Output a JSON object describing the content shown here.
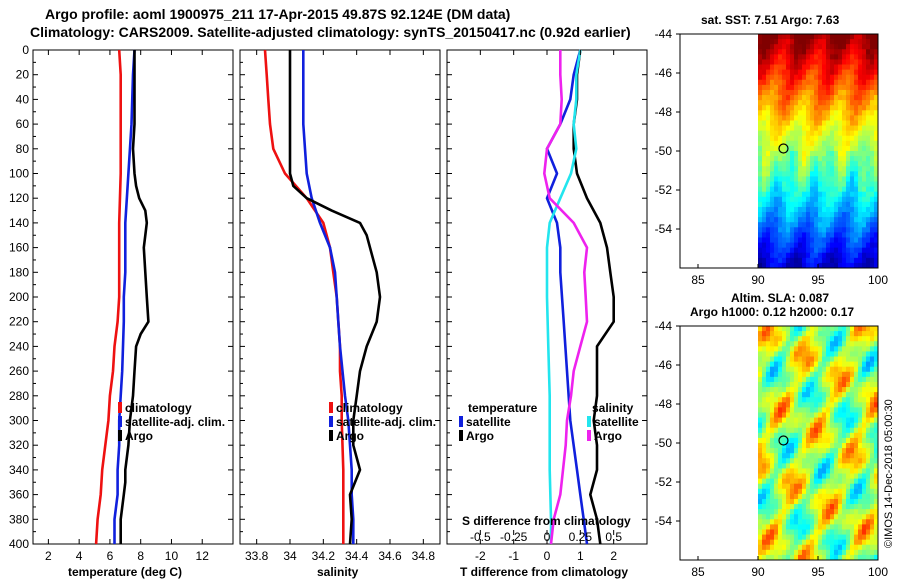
{
  "title": {
    "line1": "Argo profile: aoml 1900975_211 17-Apr-2015 49.87S 92.124E (DM data)",
    "line2": "Climatology: CARS2009. Satellite-adjusted climatology: synTS_20150417.nc (0.92d earlier)"
  },
  "colors": {
    "climatology": "#ee1111",
    "satellite": "#1020dd",
    "argo": "#000000",
    "salinity_diff": "#ee22ee",
    "salinity_sat": "#22e5ee"
  },
  "chart_data": [
    {
      "type": "line",
      "id": "temperature",
      "xlabel": "temperature (deg C)",
      "ylabel": "depth",
      "xlim": [
        1,
        14
      ],
      "ylim": [
        400,
        0
      ],
      "x_ticks": [
        2,
        4,
        6,
        8,
        10,
        12
      ],
      "y_ticks": [
        0,
        20,
        40,
        60,
        80,
        100,
        120,
        140,
        160,
        180,
        200,
        220,
        240,
        260,
        280,
        300,
        320,
        340,
        360,
        380,
        400
      ],
      "legend": [
        "climatology",
        "satellite-adj. clim.",
        "Argo"
      ],
      "series": [
        {
          "name": "climatology",
          "color_key": "climatology",
          "depth": [
            0,
            20,
            60,
            100,
            140,
            180,
            200,
            220,
            240,
            260,
            280,
            300,
            320,
            340,
            360,
            380,
            400
          ],
          "values": [
            6.6,
            6.7,
            6.7,
            6.7,
            6.6,
            6.6,
            6.6,
            6.5,
            6.3,
            6.2,
            6.0,
            5.9,
            5.7,
            5.5,
            5.4,
            5.2,
            5.1
          ]
        },
        {
          "name": "satellite-adj. clim.",
          "color_key": "satellite",
          "depth": [
            0,
            20,
            60,
            100,
            140,
            180,
            200,
            220,
            260,
            280,
            300,
            320,
            340,
            360,
            380,
            400
          ],
          "values": [
            7.6,
            7.5,
            7.4,
            7.2,
            7.0,
            7.0,
            6.9,
            6.9,
            6.8,
            6.7,
            6.6,
            6.6,
            6.5,
            6.5,
            6.3,
            6.3
          ]
        },
        {
          "name": "Argo",
          "color_key": "argo",
          "depth": [
            0,
            40,
            60,
            80,
            100,
            110,
            120,
            130,
            140,
            150,
            160,
            180,
            200,
            220,
            230,
            240,
            260,
            280,
            300,
            320,
            340,
            350,
            360,
            380,
            400
          ],
          "values": [
            7.6,
            7.6,
            7.6,
            7.5,
            7.6,
            7.7,
            7.9,
            8.3,
            8.4,
            8.3,
            8.2,
            8.3,
            8.4,
            8.5,
            8.0,
            7.7,
            7.6,
            7.5,
            7.3,
            7.2,
            7.0,
            7.0,
            6.9,
            6.7,
            6.7
          ]
        }
      ]
    },
    {
      "type": "line",
      "id": "salinity",
      "xlabel": "salinity",
      "ylabel": "depth",
      "xlim": [
        33.7,
        34.9
      ],
      "ylim": [
        400,
        0
      ],
      "x_ticks": [
        33.8,
        34,
        34.2,
        34.4,
        34.6,
        34.8
      ],
      "legend": [
        "climatology",
        "satellite-adj. clim.",
        "Argo"
      ],
      "series": [
        {
          "name": "climatology",
          "color_key": "climatology",
          "depth": [
            0,
            20,
            40,
            60,
            80,
            100,
            120,
            140,
            160,
            180,
            200,
            240,
            260,
            280,
            300,
            340,
            360,
            380,
            400
          ],
          "values": [
            33.85,
            33.86,
            33.87,
            33.88,
            33.9,
            33.97,
            34.1,
            34.2,
            34.24,
            34.26,
            34.28,
            34.3,
            34.3,
            34.31,
            34.31,
            34.32,
            34.32,
            34.32,
            34.32
          ]
        },
        {
          "name": "satellite-adj. clim.",
          "color_key": "satellite",
          "depth": [
            0,
            20,
            60,
            80,
            100,
            120,
            140,
            160,
            180,
            200,
            220,
            240,
            280,
            300,
            320,
            340,
            360,
            380,
            400
          ],
          "values": [
            34.08,
            34.08,
            34.08,
            34.09,
            34.1,
            34.13,
            34.18,
            34.24,
            34.27,
            34.28,
            34.29,
            34.3,
            34.33,
            34.35,
            34.36,
            34.37,
            34.37,
            34.38,
            34.38
          ]
        },
        {
          "name": "Argo",
          "color_key": "argo",
          "depth": [
            0,
            20,
            60,
            80,
            100,
            110,
            120,
            130,
            140,
            150,
            160,
            180,
            200,
            220,
            240,
            260,
            280,
            300,
            320,
            340,
            360,
            380,
            400
          ],
          "values": [
            34.0,
            34.0,
            34.0,
            34.0,
            34.0,
            34.02,
            34.1,
            34.25,
            34.42,
            34.46,
            34.48,
            34.52,
            34.54,
            34.52,
            34.46,
            34.42,
            34.4,
            34.38,
            34.38,
            34.42,
            34.36,
            34.37,
            34.36
          ]
        }
      ]
    },
    {
      "type": "line",
      "id": "difference",
      "xlabel": "T difference from climatology",
      "x2label": "S difference from climatology",
      "ylabel": "depth",
      "xlim": [
        -3,
        3
      ],
      "x2lim": [
        -0.75,
        0.75
      ],
      "ylim": [
        400,
        0
      ],
      "x_ticks": [
        -2,
        -1,
        0,
        1,
        2
      ],
      "x2_ticks": [
        -0.5,
        -0.25,
        0,
        0.25,
        0.5
      ],
      "legend_left_header": "temperature",
      "legend_right_header": "salinity",
      "legend_entries": [
        "satellite",
        "Argo"
      ],
      "series": [
        {
          "name": "temperature satellite",
          "color_key": "satellite",
          "axis": "T",
          "depth": [
            0,
            20,
            40,
            60,
            80,
            100,
            120,
            140,
            160,
            180,
            220,
            260,
            300,
            340,
            360,
            380,
            400
          ],
          "values": [
            1.0,
            0.8,
            0.7,
            0.4,
            0.0,
            0.3,
            0.0,
            0.3,
            0.4,
            0.4,
            0.5,
            0.6,
            0.7,
            0.9,
            1.0,
            1.1,
            1.2
          ]
        },
        {
          "name": "temperature Argo",
          "color_key": "argo",
          "axis": "T",
          "depth": [
            0,
            20,
            40,
            60,
            80,
            100,
            120,
            140,
            160,
            180,
            200,
            220,
            240,
            260,
            280,
            300,
            320,
            340,
            360,
            380,
            400
          ],
          "values": [
            1.0,
            0.9,
            0.9,
            0.8,
            0.8,
            0.9,
            1.2,
            1.6,
            1.8,
            1.9,
            2.0,
            2.0,
            1.5,
            1.5,
            1.5,
            1.4,
            1.5,
            1.5,
            1.3,
            1.5,
            1.6
          ]
        },
        {
          "name": "salinity satellite",
          "color_key": "salinity_sat",
          "axis": "S",
          "depth": [
            0,
            20,
            40,
            60,
            80,
            100,
            120,
            140,
            160,
            200,
            240,
            280,
            300,
            340,
            380,
            400
          ],
          "values": [
            0.25,
            0.22,
            0.22,
            0.2,
            0.22,
            0.18,
            0.1,
            0.02,
            0.0,
            0.0,
            0.01,
            0.02,
            0.02,
            0.02,
            0.03,
            0.03
          ]
        },
        {
          "name": "salinity Argo",
          "color_key": "salinity_diff",
          "axis": "S",
          "depth": [
            0,
            20,
            40,
            60,
            80,
            100,
            120,
            140,
            160,
            180,
            200,
            220,
            240,
            260,
            280,
            300,
            320,
            340,
            360,
            380,
            400
          ],
          "values": [
            0.1,
            0.1,
            0.11,
            0.1,
            0.0,
            -0.02,
            0.02,
            0.2,
            0.3,
            0.28,
            0.29,
            0.3,
            0.25,
            0.2,
            0.18,
            0.15,
            0.14,
            0.12,
            0.1,
            0.05,
            0.03
          ]
        }
      ]
    },
    {
      "type": "heatmap",
      "id": "sst_map",
      "title": "sat. SST: 7.51 Argo: 7.63",
      "xlim": [
        83.5,
        100
      ],
      "ylim": [
        -56,
        -44
      ],
      "x_ticks": [
        85,
        90,
        95,
        100
      ],
      "y_ticks": [
        -54,
        -52,
        -50,
        -48,
        -46,
        -44
      ],
      "data_lon_range": [
        90,
        100
      ],
      "marker": {
        "lon": 92.124,
        "lat": -49.87
      }
    },
    {
      "type": "heatmap",
      "id": "sla_map",
      "title": "Altim. SLA: 0.087",
      "subtitle": "Argo h1000: 0.12 h2000: 0.17",
      "xlim": [
        83.5,
        100
      ],
      "ylim": [
        -56,
        -44
      ],
      "x_ticks": [
        85,
        90,
        95,
        100
      ],
      "y_ticks": [
        -54,
        -52,
        -50,
        -48,
        -46,
        -44
      ],
      "data_lon_range": [
        90,
        100
      ],
      "marker": {
        "lon": 92.124,
        "lat": -49.87
      }
    }
  ],
  "credit": "©IMOS 14-Dec-2018 05:00:30"
}
